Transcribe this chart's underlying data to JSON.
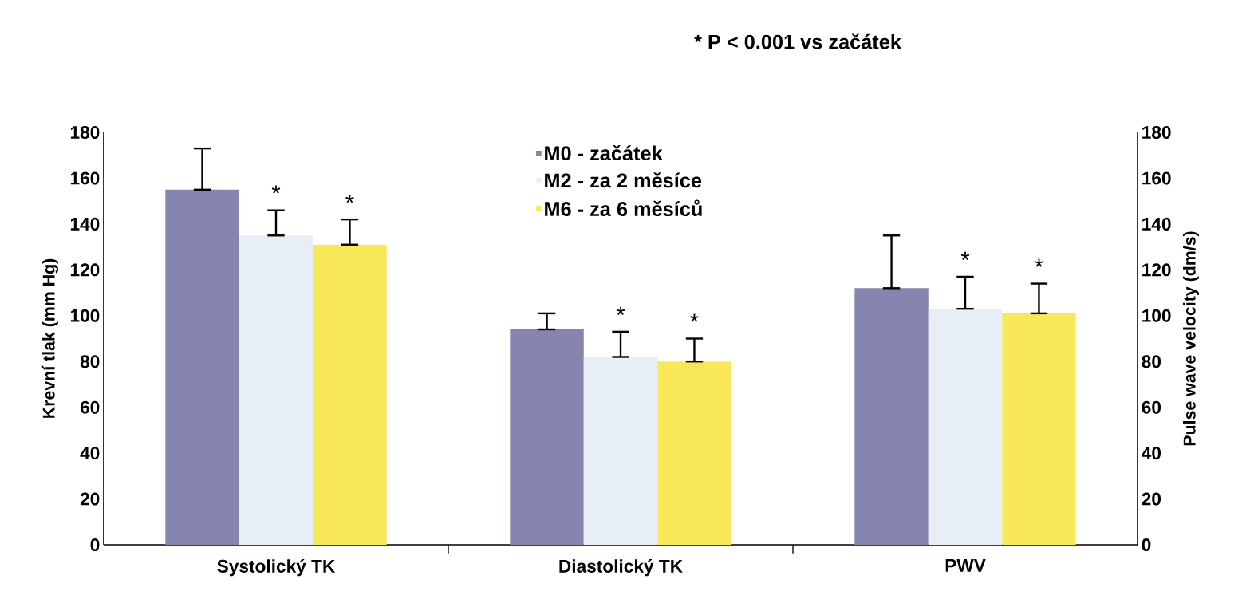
{
  "chart_data": {
    "type": "bar",
    "categories": [
      "Systolický TK",
      "Diastolický TK",
      "PWV"
    ],
    "ylabel": "Krevní tlak  (mm Hg)",
    "y2label": "Pulse wave velocity (dm/s)",
    "ylim": [
      0,
      180
    ],
    "yticks": [
      0,
      20,
      40,
      60,
      80,
      100,
      120,
      140,
      160,
      180
    ],
    "y2lim": [
      0,
      180
    ],
    "y2ticks": [
      0,
      20,
      40,
      60,
      80,
      100,
      120,
      140,
      160,
      180
    ],
    "series": [
      {
        "name": "M0 - začátek",
        "color": "#8585b0",
        "values": [
          155,
          94,
          112
        ],
        "errors": [
          [
            155,
            173
          ],
          [
            94,
            101
          ],
          [
            112,
            135
          ]
        ]
      },
      {
        "name": "M2 - za 2 měsíce",
        "color": "#e8eef5",
        "values": [
          135,
          82,
          103
        ],
        "errors": [
          [
            135,
            146
          ],
          [
            82,
            93
          ],
          [
            103,
            117
          ]
        ],
        "value_labels": [
          "*",
          "*",
          "*"
        ]
      },
      {
        "name": "M6 - za 6 měsíců",
        "color": "#f8e85a",
        "values": [
          131,
          80,
          101
        ],
        "errors": [
          [
            131,
            142
          ],
          [
            80,
            90
          ],
          [
            101,
            114
          ]
        ],
        "value_labels": [
          "*",
          "*",
          "*"
        ]
      }
    ],
    "legend": "top",
    "annotations": [
      "* P < 0.001 vs začátek"
    ]
  }
}
